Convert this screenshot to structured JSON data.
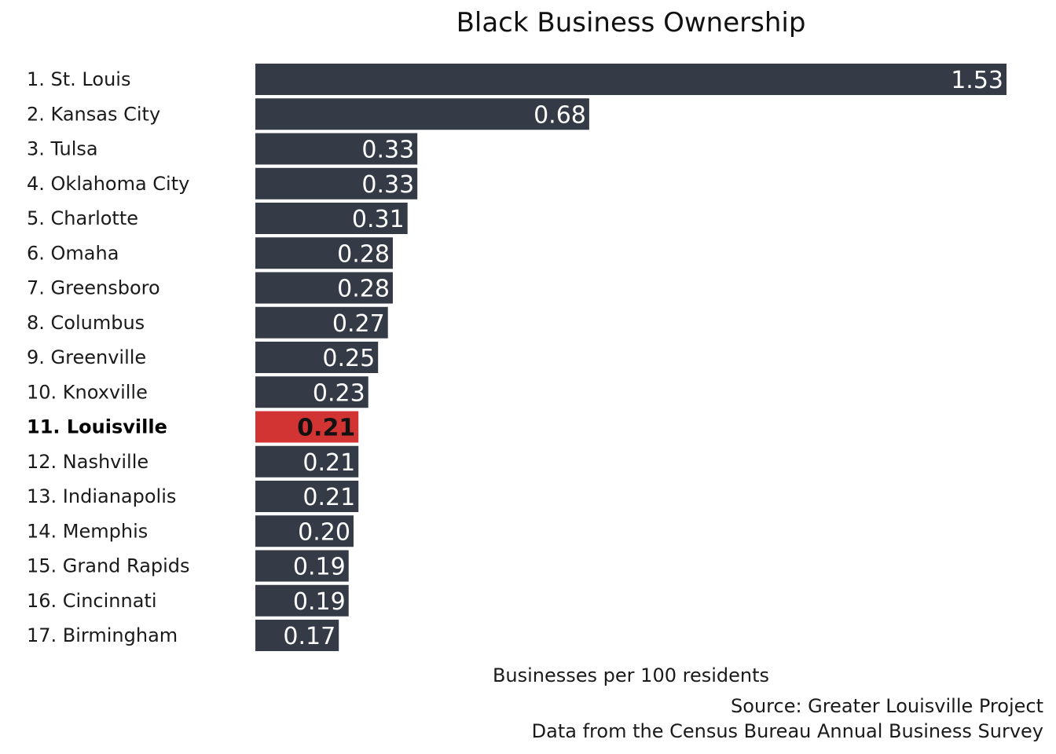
{
  "chart_data": {
    "type": "bar",
    "orientation": "horizontal",
    "title": "Black Business Ownership",
    "xlabel": "Businesses per 100 residents",
    "ylabel": "",
    "xlim": [
      0,
      1.6
    ],
    "categories": [
      "1. St. Louis",
      "2. Kansas City",
      "3. Tulsa",
      "4. Oklahoma City",
      "5. Charlotte",
      "6. Omaha",
      "7. Greensboro",
      "8. Columbus",
      "9. Greenville",
      "10. Knoxville",
      "11. Louisville",
      "12. Nashville",
      "13. Indianapolis",
      "14. Memphis",
      "15. Grand Rapids",
      "16. Cincinnati",
      "17. Birmingham"
    ],
    "values": [
      1.53,
      0.68,
      0.33,
      0.33,
      0.31,
      0.28,
      0.28,
      0.27,
      0.25,
      0.23,
      0.21,
      0.21,
      0.21,
      0.2,
      0.19,
      0.19,
      0.17
    ],
    "value_labels": [
      "1.53",
      "0.68",
      "0.33",
      "0.33",
      "0.31",
      "0.28",
      "0.28",
      "0.27",
      "0.25",
      "0.23",
      "0.21",
      "0.21",
      "0.21",
      "0.20",
      "0.19",
      "0.19",
      "0.17"
    ],
    "highlight_category": "11. Louisville",
    "grid": false,
    "source_lines": [
      "Source: Greater Louisville Project",
      "Data from the Census Bureau Annual Business Survey"
    ]
  },
  "colors": {
    "bar": "#343a46",
    "highlight_bar": "#d23434",
    "background": "#ffffff"
  }
}
